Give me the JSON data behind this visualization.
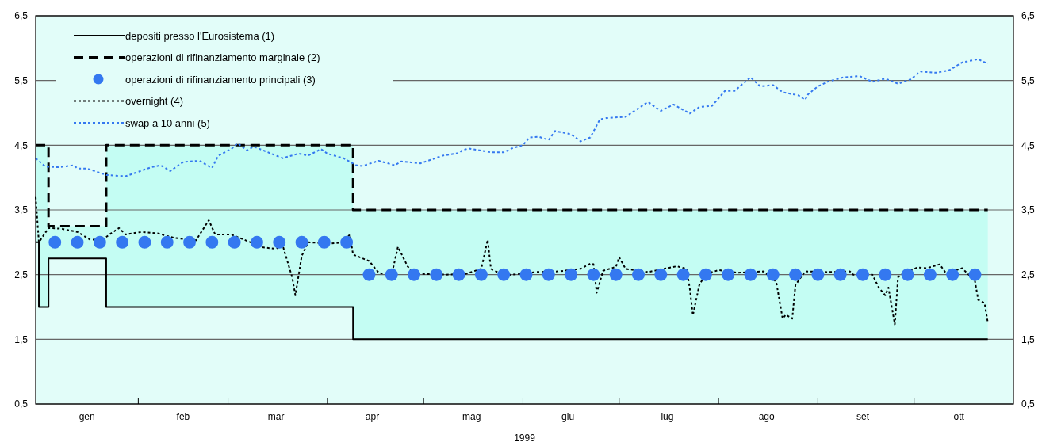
{
  "chart_data": {
    "type": "line",
    "xlabel": "1999",
    "xlim": [
      "1998-12-31",
      "1999-11-01"
    ],
    "xticks": [
      {
        "value": "1999-01-16",
        "label": "gen"
      },
      {
        "value": "1999-02-01",
        "label": null
      },
      {
        "value": "1999-02-15",
        "label": "feb"
      },
      {
        "value": "1999-03-01",
        "label": null
      },
      {
        "value": "1999-03-16",
        "label": "mar"
      },
      {
        "value": "1999-04-01",
        "label": null
      },
      {
        "value": "1999-04-15",
        "label": "apr"
      },
      {
        "value": "1999-05-01",
        "label": null
      },
      {
        "value": "1999-05-16",
        "label": "mag"
      },
      {
        "value": "1999-06-01",
        "label": null
      },
      {
        "value": "1999-06-15",
        "label": "giu"
      },
      {
        "value": "1999-07-01",
        "label": null
      },
      {
        "value": "1999-07-16",
        "label": "lug"
      },
      {
        "value": "1999-08-01",
        "label": null
      },
      {
        "value": "1999-08-16",
        "label": "ago"
      },
      {
        "value": "1999-09-01",
        "label": null
      },
      {
        "value": "1999-09-15",
        "label": "set"
      },
      {
        "value": "1999-10-01",
        "label": null
      },
      {
        "value": "1999-10-15",
        "label": "ott"
      }
    ],
    "ylim": [
      0.5,
      6.5
    ],
    "yticks": [
      {
        "value": 0.5,
        "label": "0,5"
      },
      {
        "value": 1.5,
        "label": "1,5"
      },
      {
        "value": 2.5,
        "label": "2,5"
      },
      {
        "value": 3.5,
        "label": "3,5"
      },
      {
        "value": 4.5,
        "label": "4,5"
      },
      {
        "value": 5.5,
        "label": "5,5"
      },
      {
        "value": 6.5,
        "label": "6,5"
      }
    ],
    "y2lim": [
      0.5,
      6.5
    ],
    "y2ticks": [
      {
        "value": 0.5,
        "label": "0,5"
      },
      {
        "value": 1.5,
        "label": "1,5"
      },
      {
        "value": 2.5,
        "label": "2,5"
      },
      {
        "value": 3.5,
        "label": "3,5"
      },
      {
        "value": 4.5,
        "label": "4,5"
      },
      {
        "value": 5.5,
        "label": "5,5"
      },
      {
        "value": 6.5,
        "label": "6,5"
      }
    ],
    "grid": "y",
    "legend": "top left",
    "series": [
      {
        "name": "depositi presso l'Eurosistema (1)",
        "type": "step",
        "line_style": "solid",
        "color": "#000000",
        "x": [
          "1998-12-31",
          "1999-01-01",
          "1999-01-04",
          "1999-01-22",
          "1999-04-09",
          "1999-10-24"
        ],
        "values": [
          3.0,
          2.0,
          2.75,
          2.0,
          1.5,
          1.5
        ],
        "lower": [
          3.0,
          2.0,
          2.75,
          2.0,
          1.5,
          1.5
        ],
        "upper": [
          4.5,
          4.5,
          3.25,
          4.5,
          3.5,
          3.5
        ]
      },
      {
        "name": "operazioni di rifinanziamento marginale (2)",
        "type": "step",
        "line_style": "dashed",
        "color": "#000000",
        "x": [
          "1998-12-31",
          "1999-01-01",
          "1999-01-04",
          "1999-01-22",
          "1999-04-09",
          "1999-10-24"
        ],
        "values": [
          4.5,
          4.5,
          3.25,
          4.5,
          3.5,
          3.5
        ]
      },
      {
        "name": "operazioni di rifinanziamento principali (3)",
        "type": "scatter",
        "marker": "circle",
        "color": "#3478f0",
        "x": [
          "1999-01-06",
          "1999-01-13",
          "1999-01-20",
          "1999-01-27",
          "1999-02-03",
          "1999-02-10",
          "1999-02-17",
          "1999-02-24",
          "1999-03-03",
          "1999-03-10",
          "1999-03-17",
          "1999-03-24",
          "1999-03-31",
          "1999-04-07",
          "1999-04-14",
          "1999-04-21",
          "1999-04-28",
          "1999-05-05",
          "1999-05-12",
          "1999-05-19",
          "1999-05-26",
          "1999-06-02",
          "1999-06-09",
          "1999-06-16",
          "1999-06-23",
          "1999-06-30",
          "1999-07-07",
          "1999-07-14",
          "1999-07-21",
          "1999-07-28",
          "1999-08-04",
          "1999-08-11",
          "1999-08-18",
          "1999-08-25",
          "1999-09-01",
          "1999-09-08",
          "1999-09-15",
          "1999-09-22",
          "1999-09-29",
          "1999-10-06",
          "1999-10-13",
          "1999-10-20"
        ],
        "values": [
          3.0,
          3.0,
          3.0,
          3.0,
          3.0,
          3.0,
          3.0,
          3.0,
          3.0,
          3.0,
          3.0,
          3.0,
          3.0,
          3.0,
          2.5,
          2.5,
          2.5,
          2.5,
          2.5,
          2.5,
          2.5,
          2.5,
          2.5,
          2.5,
          2.5,
          2.5,
          2.5,
          2.5,
          2.5,
          2.5,
          2.5,
          2.5,
          2.5,
          2.5,
          2.5,
          2.5,
          2.5,
          2.5,
          2.5,
          2.5,
          2.5,
          2.5
        ]
      },
      {
        "name": "overnight (4)",
        "line_style": "dotted",
        "color": "#000000",
        "x": [
          "1998-12-31",
          "1999-01-01",
          "1999-01-04",
          "1999-01-08",
          "1999-01-13",
          "1999-01-17",
          "1999-01-21",
          "1999-01-23",
          "1999-01-26",
          "1999-01-28",
          "1999-02-02",
          "1999-02-07",
          "1999-02-12",
          "1999-02-19",
          "1999-02-23",
          "1999-02-25",
          "1999-03-02",
          "1999-03-06",
          "1999-03-12",
          "1999-03-16",
          "1999-03-18",
          "1999-03-21",
          "1999-03-22",
          "1999-03-24",
          "1999-03-26",
          "1999-04-02",
          "1999-04-06",
          "1999-04-08",
          "1999-04-09",
          "1999-04-14",
          "1999-04-17",
          "1999-04-21",
          "1999-04-23",
          "1999-04-26",
          "1999-04-28",
          "1999-05-01",
          "1999-05-08",
          "1999-05-14",
          "1999-05-19",
          "1999-05-21",
          "1999-05-22",
          "1999-05-26",
          "1999-05-31",
          "1999-06-05",
          "1999-06-12",
          "1999-06-19",
          "1999-06-22",
          "1999-06-23",
          "1999-06-24",
          "1999-06-26",
          "1999-06-30",
          "1999-07-01",
          "1999-07-03",
          "1999-07-10",
          "1999-07-16",
          "1999-07-19",
          "1999-07-22",
          "1999-07-23",
          "1999-07-24",
          "1999-07-26",
          "1999-07-28",
          "1999-08-01",
          "1999-08-07",
          "1999-08-15",
          "1999-08-19",
          "1999-08-21",
          "1999-08-22",
          "1999-08-24",
          "1999-08-25",
          "1999-08-28",
          "1999-09-04",
          "1999-09-11",
          "1999-09-12",
          "1999-09-18",
          "1999-09-20",
          "1999-09-22",
          "1999-09-23",
          "1999-09-25",
          "1999-09-26",
          "1999-09-27",
          "1999-10-02",
          "1999-10-05",
          "1999-10-09",
          "1999-10-11",
          "1999-10-16",
          "1999-10-20",
          "1999-10-21",
          "1999-10-23",
          "1999-10-24"
        ],
        "values": [
          3.7,
          3.0,
          3.22,
          3.21,
          3.16,
          3.04,
          3.04,
          3.12,
          3.22,
          3.12,
          3.16,
          3.14,
          3.07,
          3.03,
          3.34,
          3.12,
          3.12,
          3.04,
          2.92,
          2.9,
          2.96,
          2.46,
          2.18,
          2.79,
          3.0,
          2.98,
          3.0,
          3.12,
          2.81,
          2.71,
          2.53,
          2.49,
          2.93,
          2.63,
          2.51,
          2.51,
          2.5,
          2.51,
          2.59,
          3.04,
          2.59,
          2.49,
          2.51,
          2.54,
          2.55,
          2.59,
          2.67,
          2.66,
          2.22,
          2.56,
          2.62,
          2.77,
          2.59,
          2.54,
          2.6,
          2.63,
          2.59,
          2.3,
          1.87,
          2.34,
          2.51,
          2.57,
          2.53,
          2.55,
          2.39,
          1.82,
          1.88,
          1.82,
          2.34,
          2.55,
          2.54,
          2.55,
          2.5,
          2.5,
          2.3,
          2.18,
          2.3,
          1.73,
          2.46,
          2.5,
          2.61,
          2.6,
          2.66,
          2.52,
          2.6,
          2.4,
          2.11,
          2.06,
          1.76
        ]
      },
      {
        "name": "swap a 10 anni (5)",
        "line_style": "dotted",
        "color": "#3478f0",
        "x": [
          "1998-12-31",
          "1999-01-03",
          "1999-01-07",
          "1999-01-12",
          "1999-01-13",
          "1999-01-16",
          "1999-01-22",
          "1999-01-28",
          "1999-02-05",
          "1999-02-08",
          "1999-02-11",
          "1999-02-15",
          "1999-02-20",
          "1999-02-24",
          "1999-02-26",
          "1999-03-02",
          "1999-03-04",
          "1999-03-07",
          "1999-03-09",
          "1999-03-12",
          "1999-03-18",
          "1999-03-23",
          "1999-03-26",
          "1999-03-30",
          "1999-04-01",
          "1999-04-06",
          "1999-04-10",
          "1999-04-12",
          "1999-04-17",
          "1999-04-22",
          "1999-04-24",
          "1999-04-30",
          "1999-05-07",
          "1999-05-12",
          "1999-05-13",
          "1999-05-15",
          "1999-05-22",
          "1999-05-26",
          "1999-05-29",
          "1999-06-01",
          "1999-06-03",
          "1999-06-06",
          "1999-06-09",
          "1999-06-11",
          "1999-06-16",
          "1999-06-19",
          "1999-06-22",
          "1999-06-25",
          "1999-06-27",
          "1999-07-03",
          "1999-07-10",
          "1999-07-14",
          "1999-07-18",
          "1999-07-23",
          "1999-07-26",
          "1999-07-30",
          "1999-08-03",
          "1999-08-06",
          "1999-08-11",
          "1999-08-14",
          "1999-08-18",
          "1999-08-21",
          "1999-08-26",
          "1999-08-28",
          "1999-08-29",
          "1999-09-01",
          "1999-09-04",
          "1999-09-09",
          "1999-09-14",
          "1999-09-18",
          "1999-09-22",
          "1999-09-26",
          "1999-09-30",
          "1999-10-03",
          "1999-10-08",
          "1999-10-12",
          "1999-10-16",
          "1999-10-21",
          "1999-10-24"
        ],
        "values": [
          4.3,
          4.17,
          4.16,
          4.19,
          4.14,
          4.14,
          4.04,
          4.02,
          4.16,
          4.19,
          4.1,
          4.24,
          4.26,
          4.15,
          4.34,
          4.44,
          4.53,
          4.42,
          4.48,
          4.42,
          4.3,
          4.37,
          4.34,
          4.44,
          4.37,
          4.3,
          4.19,
          4.18,
          4.26,
          4.19,
          4.25,
          4.22,
          4.34,
          4.38,
          4.42,
          4.45,
          4.39,
          4.39,
          4.46,
          4.5,
          4.62,
          4.63,
          4.58,
          4.72,
          4.67,
          4.56,
          4.62,
          4.9,
          4.92,
          4.94,
          5.17,
          5.03,
          5.13,
          4.99,
          5.09,
          5.11,
          5.34,
          5.34,
          5.55,
          5.41,
          5.43,
          5.32,
          5.27,
          5.2,
          5.29,
          5.41,
          5.48,
          5.55,
          5.57,
          5.48,
          5.53,
          5.45,
          5.52,
          5.64,
          5.62,
          5.66,
          5.78,
          5.83,
          5.76
        ]
      }
    ]
  }
}
